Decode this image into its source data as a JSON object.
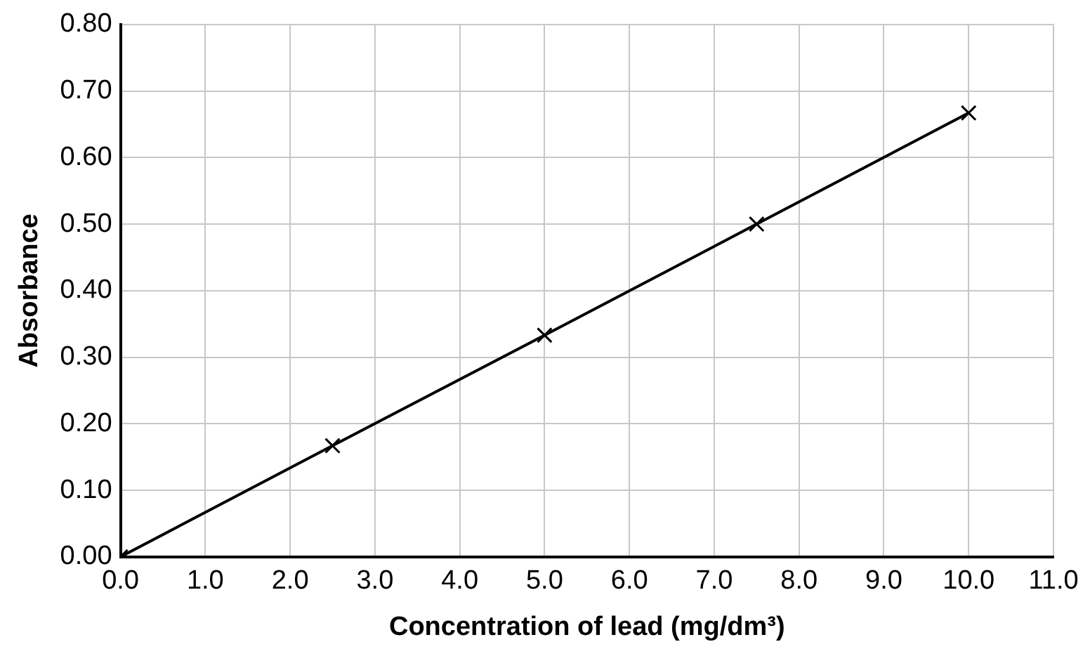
{
  "chart_data": {
    "type": "line",
    "xlabel": "Concentration of lead (mg/dm³)",
    "ylabel": "Absorbance",
    "x": [
      0,
      2.5,
      5,
      7.5,
      10
    ],
    "series": [
      {
        "color": "#000000",
        "values": [
          0,
          0.167,
          0.333,
          0.5,
          0.667
        ]
      }
    ],
    "xlim": [
      0,
      11
    ],
    "xticks": [
      {
        "value": 0,
        "label": "0.0"
      },
      {
        "value": 1,
        "label": "1.0"
      },
      {
        "value": 2,
        "label": "2.0"
      },
      {
        "value": 3,
        "label": "3.0"
      },
      {
        "value": 4,
        "label": "4.0"
      },
      {
        "value": 5,
        "label": "5.0"
      },
      {
        "value": 6,
        "label": "6.0"
      },
      {
        "value": 7,
        "label": "7.0"
      },
      {
        "value": 8,
        "label": "8.0"
      },
      {
        "value": 9,
        "label": "9.0"
      },
      {
        "value": 10,
        "label": "10.0"
      },
      {
        "value": 11,
        "label": "11.0"
      }
    ],
    "ylim": [
      0,
      0.8
    ],
    "yticks": [
      {
        "value": 0,
        "label": "0.00"
      },
      {
        "value": 0.1,
        "label": "0.10"
      },
      {
        "value": 0.2,
        "label": "0.20"
      },
      {
        "value": 0.3,
        "label": "0.30"
      },
      {
        "value": 0.4,
        "label": "0.40"
      },
      {
        "value": 0.5,
        "label": "0.50"
      },
      {
        "value": 0.6,
        "label": "0.60"
      },
      {
        "value": 0.7,
        "label": "0.70"
      },
      {
        "value": 0.8,
        "label": "0.80"
      }
    ],
    "grid": true,
    "legend": false,
    "marker": "cross",
    "line_style": "solid"
  }
}
